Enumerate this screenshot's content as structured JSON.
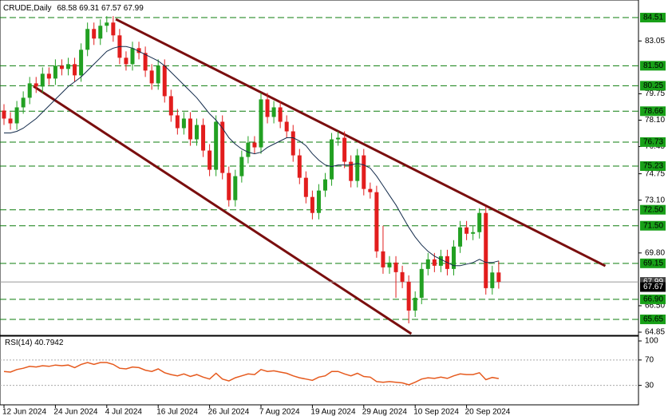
{
  "chart_data": {
    "type": "candlestick",
    "title": "CRUDE,Daily",
    "categories": [
      "12 Jun 2024",
      null,
      null,
      null,
      null,
      null,
      null,
      null,
      "24 Jun 2024",
      null,
      null,
      null,
      null,
      null,
      null,
      null,
      "4 Jul 2024",
      null,
      null,
      null,
      null,
      null,
      null,
      null,
      "16 Jul 2024",
      null,
      null,
      null,
      null,
      null,
      null,
      null,
      "26 Jul 2024",
      null,
      null,
      null,
      null,
      null,
      null,
      null,
      "7 Aug 2024",
      null,
      null,
      null,
      null,
      null,
      null,
      null,
      "19 Aug 2024",
      null,
      null,
      null,
      null,
      null,
      null,
      null,
      "29 Aug 2024",
      null,
      null,
      null,
      null,
      null,
      null,
      null,
      "10 Sep 2024",
      null,
      null,
      null,
      null,
      null,
      null,
      null,
      "20 Sep 2024",
      null,
      null,
      null,
      null,
      null
    ],
    "open": [
      78.7,
      78.2,
      77.9,
      78.9,
      79.5,
      80.4,
      80.2,
      81.0,
      80.7,
      81.5,
      81.3,
      81.6,
      80.9,
      82.5,
      83.8,
      83.2,
      84.0,
      84.2,
      83.4,
      82.0,
      81.6,
      82.6,
      82.3,
      81.2,
      80.4,
      81.5,
      79.6,
      78.4,
      77.6,
      78.2,
      76.9,
      77.8,
      76.2,
      75.0,
      78.0,
      74.8,
      73.1,
      74.6,
      75.8,
      76.7,
      76.4,
      79.4,
      78.3,
      78.9,
      78.0,
      77.4,
      75.9,
      74.5,
      73.3,
      72.3,
      73.7,
      74.4,
      76.9,
      77.0,
      75.5,
      74.3,
      75.9,
      73.8,
      73.6,
      69.9,
      68.9,
      69.2,
      68.6,
      68.0,
      66.2,
      67.0,
      68.8,
      69.4,
      69.0,
      69.6,
      68.8,
      70.2,
      71.4,
      71.0,
      71.1,
      72.3,
      67.6,
      68.58
    ],
    "high": [
      79.1,
      78.6,
      79.3,
      79.9,
      80.8,
      80.8,
      81.4,
      81.4,
      81.9,
      81.9,
      82.0,
      82.0,
      82.9,
      84.2,
      84.2,
      84.4,
      84.6,
      84.6,
      83.8,
      82.4,
      83.0,
      83.0,
      82.7,
      81.6,
      81.9,
      81.9,
      80.0,
      78.8,
      78.6,
      78.6,
      78.2,
      78.2,
      76.6,
      78.4,
      78.4,
      75.2,
      75.0,
      76.2,
      77.1,
      77.1,
      79.8,
      79.8,
      79.3,
      79.3,
      78.4,
      77.8,
      76.3,
      74.9,
      73.7,
      74.1,
      74.8,
      77.3,
      77.4,
      77.4,
      75.9,
      76.3,
      76.3,
      74.2,
      74.0,
      71.5,
      69.6,
      69.6,
      69.0,
      68.4,
      67.4,
      69.2,
      69.8,
      69.8,
      70.0,
      70.0,
      70.6,
      71.8,
      71.8,
      71.5,
      72.6,
      72.7,
      69.0,
      69.31
    ],
    "low": [
      77.8,
      77.5,
      77.5,
      78.5,
      79.1,
      79.8,
      79.8,
      80.3,
      80.3,
      80.9,
      80.9,
      80.5,
      80.5,
      82.1,
      82.8,
      82.8,
      83.6,
      83.0,
      81.6,
      81.2,
      81.2,
      81.9,
      80.8,
      80.0,
      80.0,
      79.2,
      78.0,
      77.2,
      77.2,
      76.5,
      76.5,
      75.8,
      74.6,
      74.6,
      74.4,
      72.7,
      72.7,
      74.2,
      75.4,
      76.0,
      76.0,
      77.9,
      77.9,
      77.6,
      77.0,
      75.5,
      74.1,
      72.9,
      71.9,
      71.9,
      73.3,
      74.0,
      76.5,
      75.1,
      73.9,
      73.9,
      73.4,
      73.2,
      69.5,
      68.5,
      68.5,
      67.0,
      67.6,
      65.4,
      65.8,
      66.6,
      68.4,
      68.6,
      68.6,
      68.4,
      68.4,
      69.8,
      70.6,
      70.6,
      70.7,
      67.2,
      67.2,
      67.57
    ],
    "close": [
      78.2,
      77.9,
      78.9,
      79.5,
      80.4,
      80.2,
      81.0,
      80.7,
      81.5,
      81.3,
      81.6,
      80.9,
      82.5,
      83.8,
      83.2,
      84.0,
      84.2,
      83.4,
      82.0,
      81.6,
      82.6,
      82.3,
      81.2,
      80.4,
      81.5,
      79.6,
      78.4,
      77.6,
      78.2,
      76.9,
      77.8,
      76.2,
      75.0,
      78.0,
      74.8,
      73.1,
      74.6,
      75.8,
      76.7,
      76.4,
      79.4,
      78.3,
      78.9,
      78.0,
      77.4,
      75.9,
      74.5,
      73.3,
      72.3,
      73.7,
      74.4,
      76.9,
      77.0,
      75.5,
      74.3,
      75.9,
      73.8,
      73.6,
      69.9,
      68.9,
      69.2,
      68.6,
      68.0,
      66.2,
      67.0,
      68.8,
      69.4,
      69.0,
      69.6,
      68.8,
      70.2,
      71.4,
      71.0,
      71.1,
      72.3,
      67.6,
      68.58,
      67.99
    ],
    "bull_color": "#22a022",
    "bear_color": "#e21d1d",
    "ma": {
      "color": "#142c4c",
      "values": [
        77.3,
        77.3,
        77.4,
        77.6,
        77.9,
        78.2,
        78.6,
        79.0,
        79.4,
        79.8,
        80.2,
        80.5,
        80.8,
        81.2,
        81.6,
        82.0,
        82.4,
        82.6,
        82.7,
        82.7,
        82.6,
        82.4,
        82.2,
        82.0,
        81.8,
        81.5,
        81.1,
        80.7,
        80.3,
        79.9,
        79.5,
        79.0,
        78.5,
        78.1,
        77.6,
        77.0,
        76.6,
        76.3,
        76.1,
        76.0,
        76.1,
        76.4,
        76.6,
        76.8,
        77.0,
        77.0,
        76.8,
        76.5,
        76.0,
        75.6,
        75.3,
        75.2,
        75.3,
        75.3,
        75.3,
        75.4,
        75.3,
        75.1,
        74.6,
        74.0,
        73.4,
        72.8,
        72.1,
        71.4,
        70.8,
        70.3,
        69.9,
        69.6,
        69.4,
        69.2,
        69.0,
        69.0,
        69.1,
        69.2,
        69.4,
        69.2,
        69.2,
        69.3
      ]
    },
    "ylim": [
      64.65,
      85.61
    ],
    "yticks": [
      83.05,
      79.75,
      {
        "value": 78.1,
        "label": "78.10"
      },
      76.45,
      74.75,
      {
        "value": 73.1,
        "label": "73.10"
      },
      {
        "value": 69.8,
        "label": "69.80"
      },
      {
        "value": 66.5,
        "label": "66.50"
      },
      64.85
    ],
    "levels": {
      "color": "#0d7d0d",
      "box_color": "#18a018",
      "values": [
        84.51,
        {
          "value": 81.5,
          "label": "81.50"
        },
        80.25,
        78.66,
        76.73,
        75.23,
        {
          "value": 72.5,
          "label": "72.50"
        },
        {
          "value": 71.5,
          "label": "71.50"
        },
        69.15,
        {
          "value": 66.9,
          "label": "66.90"
        },
        65.65
      ]
    },
    "ask_level": 67.67,
    "trendlines": {
      "color": "#7a0e0e",
      "lines": [
        {
          "x": [
            17.4,
            93.6
          ],
          "y": [
            84.41,
            68.99
          ]
        },
        {
          "x": [
            4.6,
            63.4
          ],
          "y": [
            80.22,
            64.75
          ]
        }
      ]
    },
    "rsi": {
      "label": "RSI(14)",
      "color": "#e65a1e",
      "ylim": [
        0,
        100
      ],
      "yticks": [
        100,
        70,
        30
      ],
      "levels": [
        70,
        30
      ],
      "values": [
        52,
        51,
        55,
        57,
        60,
        59,
        61,
        60,
        62,
        61,
        62,
        58,
        63,
        66,
        63,
        66,
        66,
        63,
        57,
        56,
        59,
        58,
        54,
        52,
        56,
        50,
        47,
        45,
        48,
        44,
        47,
        43,
        40,
        49,
        40,
        37,
        42,
        45,
        48,
        47,
        55,
        52,
        53,
        51,
        49,
        45,
        42,
        40,
        38,
        43,
        45,
        52,
        52,
        48,
        45,
        49,
        44,
        43,
        36,
        35,
        36,
        35,
        34,
        31,
        35,
        40,
        42,
        41,
        43,
        41,
        45,
        48,
        47,
        47,
        50,
        39,
        42.5,
        40.7942
      ]
    }
  }
}
